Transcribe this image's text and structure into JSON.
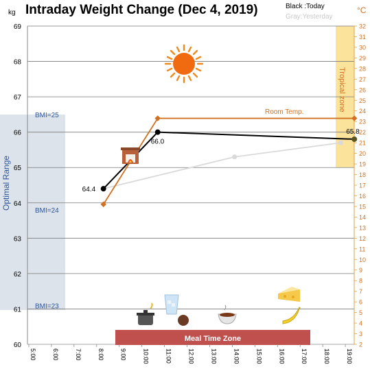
{
  "chart_data": {
    "type": "line",
    "title": "Intraday Weight Change (Dec 4, 2019)",
    "legend": {
      "today": "Black :Today",
      "yesterday": "Gray:Yesterday"
    },
    "left_unit": "kg",
    "right_unit": "°C",
    "y_left": {
      "min": 60,
      "max": 69,
      "ticks": [
        "60",
        "61",
        "62",
        "63",
        "64",
        "65",
        "66",
        "67",
        "68",
        "69"
      ]
    },
    "y_right": {
      "min": 2,
      "max": 32,
      "ticks": [
        "2",
        "3",
        "4",
        "5",
        "6",
        "7",
        "8",
        "9",
        "10",
        "11",
        "12",
        "13",
        "14",
        "15",
        "16",
        "17",
        "18",
        "19",
        "20",
        "21",
        "22",
        "23",
        "24",
        "25",
        "26",
        "27",
        "28",
        "29",
        "30",
        "31",
        "32"
      ]
    },
    "x_ticks": [
      "5:00",
      "6:00",
      "7:00",
      "8:00",
      "9:00",
      "10:00",
      "11:00",
      "12:00",
      "13:00",
      "14:00",
      "15:00",
      "16:00",
      "17:00",
      "18:00",
      "19:00"
    ],
    "x_range": [
      5,
      20
    ],
    "series": [
      {
        "name": "Today",
        "color": "#000000",
        "x": [
          8.3,
          10.7,
          19.4
        ],
        "y": [
          64.4,
          66.0,
          65.8
        ],
        "labels": [
          "64.4",
          "66.0",
          "65.8"
        ]
      },
      {
        "name": "Yesterday",
        "color": "#d9d9d9",
        "x": [
          8.3,
          14.1,
          18.8
        ],
        "y": [
          64.4,
          65.3,
          65.7
        ]
      },
      {
        "name": "Room Temp.",
        "color": "#d07020",
        "axis": "right",
        "x": [
          8.3,
          10.7,
          19.4
        ],
        "y": [
          15.2,
          23.3,
          23.3
        ]
      }
    ],
    "bmi_labels": [
      {
        "text": "BMI=25",
        "y": 66.5
      },
      {
        "text": "BMI=24",
        "y": 63.8
      },
      {
        "text": "BMI=23",
        "y": 61.1
      }
    ],
    "optimal_range": {
      "label": "Optimal Range",
      "y": [
        61,
        66.5
      ]
    },
    "tropical_zone": {
      "label": "Tropical zone",
      "y": [
        19,
        32
      ]
    },
    "meal_zone": {
      "label": "Meal Time Zone",
      "x": [
        9,
        18
      ]
    },
    "room_temp_label": "Room Temp.",
    "icons": [
      "sun-icon",
      "fireplace-icon",
      "pot-icon",
      "water-glass-icon",
      "onigiri-icon",
      "soup-bowl-icon",
      "cheese-icon",
      "banana-icon"
    ]
  }
}
